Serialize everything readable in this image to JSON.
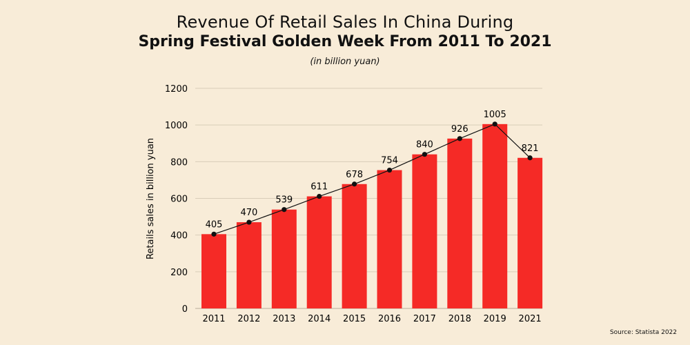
{
  "header": {
    "title_line1": "Revenue Of Retail Sales In China During",
    "title_line2": "Spring Festival Golden Week From 2011 To 2021",
    "subtitle": "(in billion yuan)"
  },
  "footer": {
    "source": "Source: Statista 2022"
  },
  "chart_data": {
    "type": "bar",
    "title": "Revenue Of Retail Sales In China During Spring Festival Golden Week From 2011 To 2021",
    "subtitle": "(in billion yuan)",
    "xlabel": "",
    "ylabel": "Retails sales in billion yuan",
    "categories": [
      "2011",
      "2012",
      "2013",
      "2014",
      "2015",
      "2016",
      "2017",
      "2018",
      "2019",
      "2021"
    ],
    "values": [
      405,
      470,
      539,
      611,
      678,
      754,
      840,
      926,
      1005,
      821
    ],
    "ylim": [
      0,
      1200
    ],
    "yticks": [
      0,
      200,
      400,
      600,
      800,
      1000,
      1200
    ],
    "grid": true,
    "overlay_line": true,
    "data_labels": true,
    "bar_color": "#f52a26",
    "line_color": "#111111",
    "grid_color": "#d8cdb8"
  }
}
